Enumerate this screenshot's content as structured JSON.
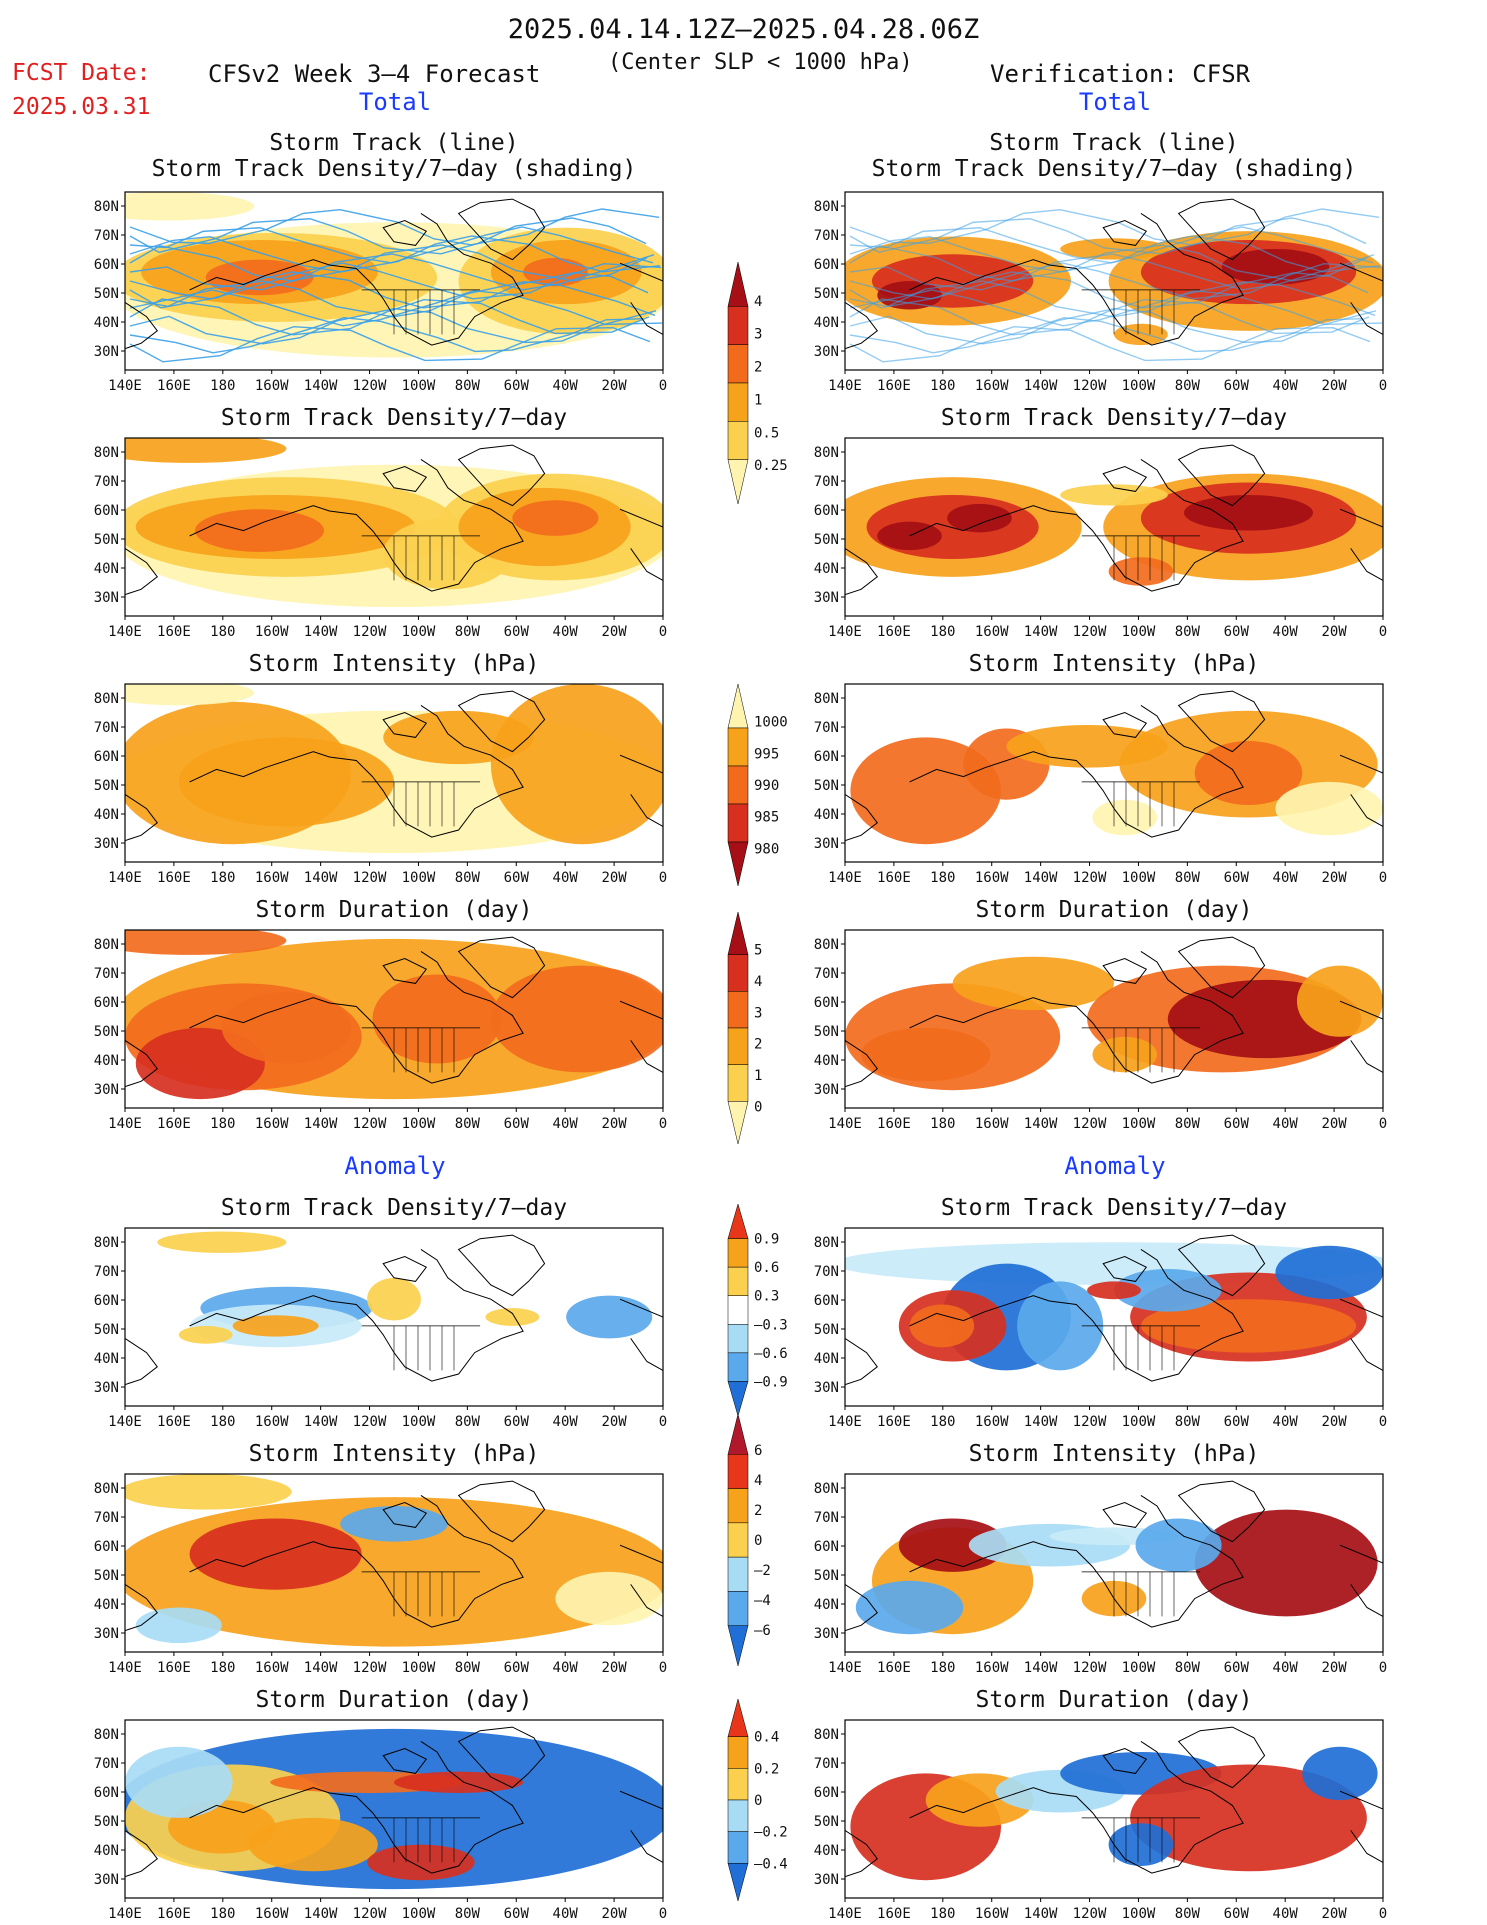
{
  "header": {
    "date_range": "2025.04.14.12Z–2025.04.28.06Z",
    "fcst_date_label": "FCST Date:",
    "fcst_date_value": "2025.03.31",
    "left_title": "CFSv2 Week 3–4 Forecast",
    "center_note": "(Center SLP < 1000 hPa)",
    "right_title": "Verification: CFSR"
  },
  "sections": {
    "total": "Total",
    "anomaly": "Anomaly"
  },
  "axes": {
    "lon_labels": [
      "140E",
      "160E",
      "180",
      "160W",
      "140W",
      "120W",
      "100W",
      "80W",
      "60W",
      "40W",
      "20W",
      "0"
    ],
    "lat_labels": [
      "80N",
      "70N",
      "60N",
      "50N",
      "40N",
      "30N"
    ]
  },
  "panels": {
    "left": [
      {
        "title": "Storm Track (line)\nStorm Track Density/7–day (shading)"
      },
      {
        "title": "Storm Track Density/7–day"
      },
      {
        "title": "Storm Intensity (hPa)"
      },
      {
        "title": "Storm Duration (day)"
      },
      {
        "title": "Storm Track Density/7–day"
      },
      {
        "title": "Storm Intensity (hPa)"
      },
      {
        "title": "Storm Duration (day)"
      }
    ],
    "right": [
      {
        "title": "Storm Track (line)\nStorm Track Density/7–day (shading)"
      },
      {
        "title": "Storm Track Density/7–day"
      },
      {
        "title": "Storm Intensity (hPa)"
      },
      {
        "title": "Storm Duration (day)"
      },
      {
        "title": "Storm Track Density/7–day"
      },
      {
        "title": "Storm Intensity (hPa)"
      },
      {
        "title": "Storm Duration (day)"
      }
    ]
  },
  "colorbars": [
    {
      "name": "density",
      "labels": [
        "4",
        "3",
        "2",
        "1",
        "0.5",
        "0.25"
      ],
      "colors": [
        "#a50f15",
        "#d7301f",
        "#f26b1d",
        "#f7a21b",
        "#fbd04e",
        "#fef4b0"
      ]
    },
    {
      "name": "intensity",
      "labels": [
        "1000",
        "995",
        "990",
        "985",
        "980"
      ],
      "colors": [
        "#fef4b0",
        "#f7a21b",
        "#f26b1d",
        "#d7301f",
        "#a50f15"
      ]
    },
    {
      "name": "duration",
      "labels": [
        "5",
        "4",
        "3",
        "2",
        "1",
        "0"
      ],
      "colors": [
        "#a50f15",
        "#d7301f",
        "#f26b1d",
        "#f7a21b",
        "#fbd04e",
        "#fef4b0"
      ]
    },
    {
      "name": "density-anom",
      "labels": [
        "0.9",
        "0.6",
        "0.3",
        "–0.3",
        "–0.6",
        "–0.9"
      ],
      "colors": [
        "#e8361b",
        "#f7a21b",
        "#fbd04e",
        "#ffffff",
        "#a8dcf5",
        "#5aa9ec",
        "#1f6fd6"
      ]
    },
    {
      "name": "intensity-anom",
      "labels": [
        "6",
        "4",
        "2",
        "0",
        "–2",
        "–4",
        "–6"
      ],
      "colors": [
        "#b2182b",
        "#e8361b",
        "#f7a21b",
        "#fbd04e",
        "#a8dcf5",
        "#5aa9ec",
        "#1f6fd6"
      ]
    },
    {
      "name": "duration-anom",
      "labels": [
        "0.4",
        "0.2",
        "0",
        "–0.2",
        "–0.4"
      ],
      "colors": [
        "#e8361b",
        "#f7a21b",
        "#fbd04e",
        "#a8dcf5",
        "#5aa9ec",
        "#1f6fd6"
      ]
    }
  ]
}
